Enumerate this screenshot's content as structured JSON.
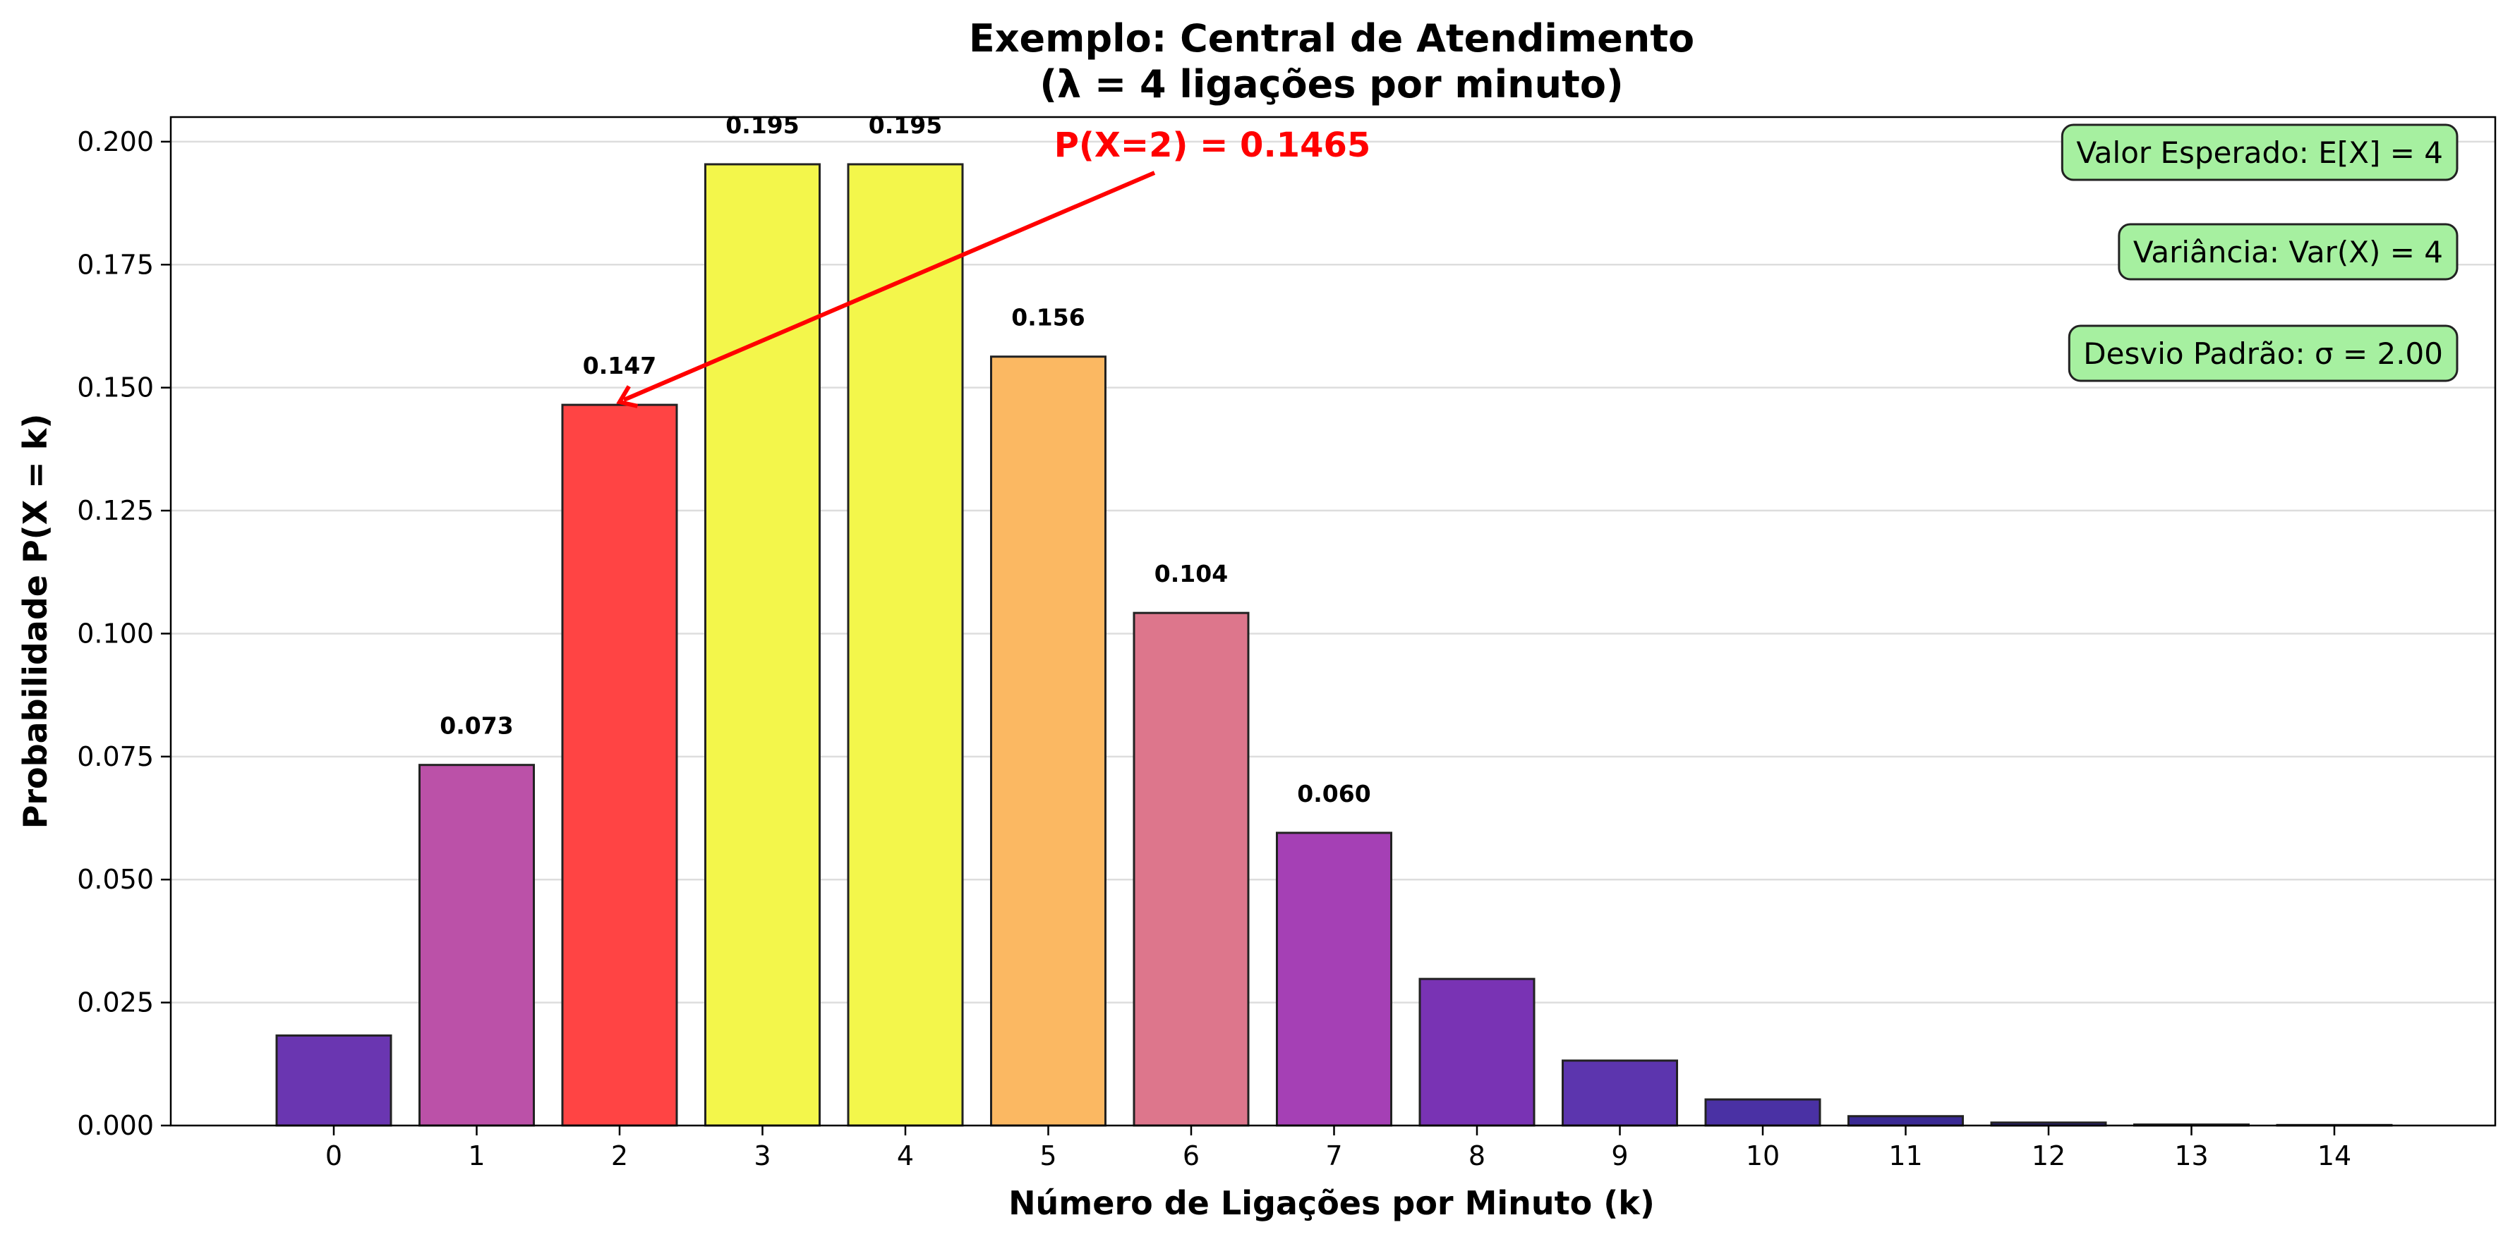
{
  "chart_data": {
    "type": "bar",
    "title_line1": "Exemplo: Central de Atendimento",
    "title_line2": "(λ = 4 ligações por minuto)",
    "xlabel": "Número de Ligações por Minuto (k)",
    "ylabel": "Probabilidade P(X = k)",
    "categories": [
      "0",
      "1",
      "2",
      "3",
      "4",
      "5",
      "6",
      "7",
      "8",
      "9",
      "10",
      "11",
      "12",
      "13",
      "14"
    ],
    "values": [
      0.0183,
      0.0733,
      0.1465,
      0.1954,
      0.1954,
      0.1563,
      0.1042,
      0.0595,
      0.0298,
      0.0132,
      0.0053,
      0.0019,
      0.0006,
      0.0002,
      0.0001
    ],
    "data_labels": [
      "",
      "0.073",
      "0.147",
      "0.195",
      "0.195",
      "0.156",
      "0.104",
      "0.060",
      "",
      "",
      "",
      "",
      "",
      "",
      ""
    ],
    "bar_colors": [
      "#6a36b1",
      "#bb51a8",
      "#ff4444",
      "#f3f64b",
      "#f3f64b",
      "#fbb862",
      "#dd768c",
      "#a540b5",
      "#7933b4",
      "#5c35ae",
      "#4a31a4",
      "#3a2a94",
      "#2d2380",
      "#211a6b",
      "#170f56"
    ],
    "ylim": [
      0,
      0.205
    ],
    "yticks": [
      0.0,
      0.025,
      0.05,
      0.075,
      0.1,
      0.125,
      0.15,
      0.175,
      0.2
    ],
    "ytick_labels": [
      "0.000",
      "0.025",
      "0.050",
      "0.075",
      "0.100",
      "0.125",
      "0.150",
      "0.175",
      "0.200"
    ],
    "grid": "y",
    "annotation": {
      "text": "P(X=2) = 0.1465",
      "target_k": 2,
      "target_value": 0.1465,
      "color": "#ff0000"
    },
    "stats": [
      "Valor Esperado: E[X] = 4",
      "Variância: Var(X) = 4",
      "Desvio Padrão: σ = 2.00"
    ],
    "stats_box_color": "#a6f0a0"
  }
}
